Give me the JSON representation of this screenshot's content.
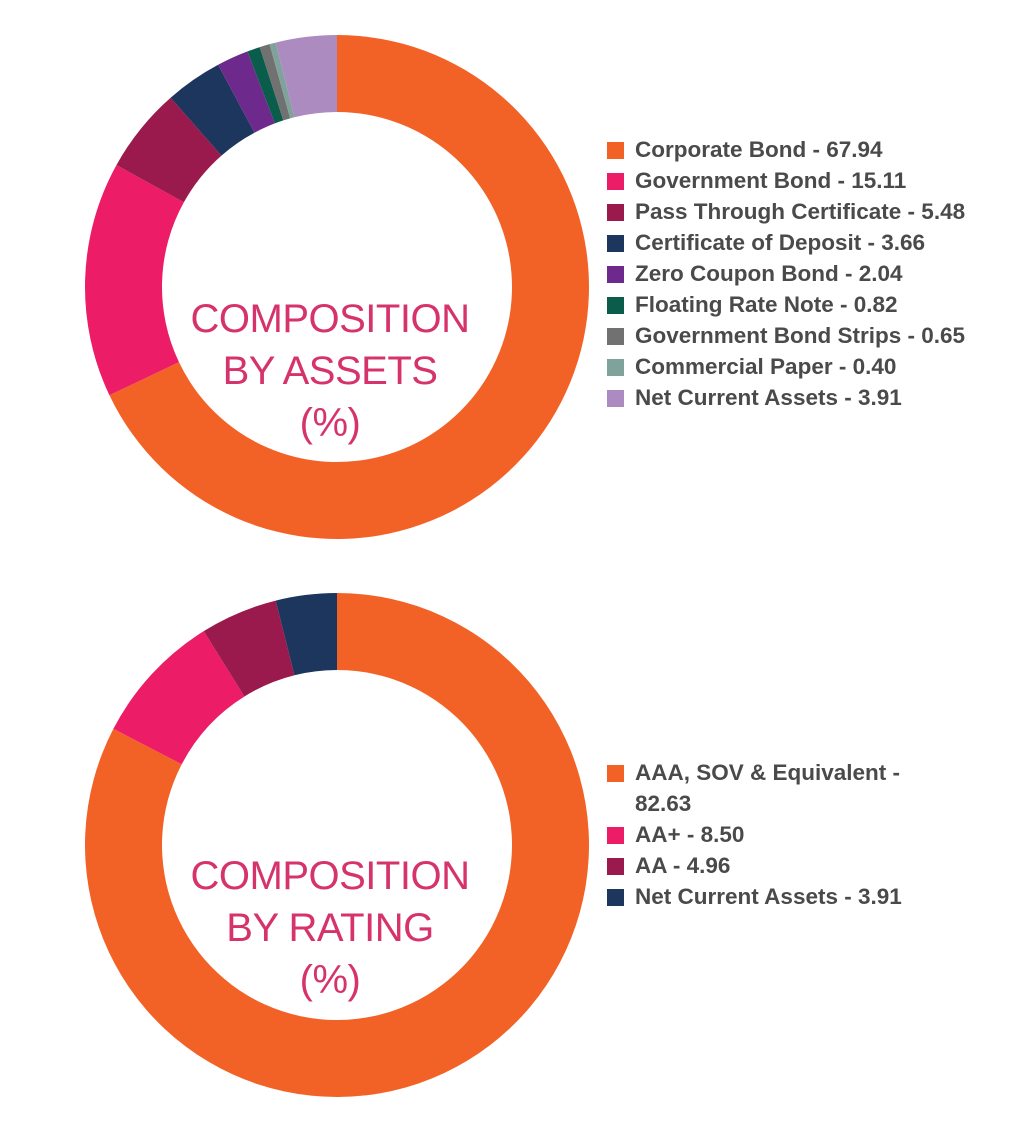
{
  "chart_data": [
    {
      "type": "donut",
      "title_lines": [
        "COMPOSITION",
        "BY ASSETS",
        "(%)"
      ],
      "unit": "%",
      "categories": [
        "Corporate Bond",
        "Government Bond",
        "Pass Through Certificate",
        "Certificate of Deposit",
        "Zero Coupon Bond",
        "Floating Rate Note",
        "Government Bond Strips",
        "Commercial Paper",
        "Net Current Assets"
      ],
      "values": [
        67.94,
        15.11,
        5.48,
        3.66,
        2.04,
        0.82,
        0.65,
        0.4,
        3.91
      ],
      "value_labels": [
        "67.94",
        "15.11",
        "5.48",
        "3.66",
        "2.04",
        "0.82",
        "0.65",
        "0.40",
        "3.91"
      ],
      "colors": [
        "#f26227",
        "#ec1c66",
        "#9a1a4d",
        "#1c365d",
        "#6d2a8c",
        "#0a5d4b",
        "#717171",
        "#7fa39b",
        "#ac8cc0"
      ],
      "legend_position": "right"
    },
    {
      "type": "donut",
      "title_lines": [
        "COMPOSITION",
        "BY RATING",
        "(%)"
      ],
      "unit": "%",
      "categories": [
        "AAA, SOV & Equivalent",
        "AA+",
        "AA",
        "Net Current Assets"
      ],
      "values": [
        82.63,
        8.5,
        4.96,
        3.91
      ],
      "value_labels": [
        "82.63",
        "8.50",
        "4.96",
        "3.91"
      ],
      "colors": [
        "#f26227",
        "#ec1c66",
        "#9a1a4d",
        "#1c365d"
      ],
      "legend_position": "right"
    }
  ]
}
